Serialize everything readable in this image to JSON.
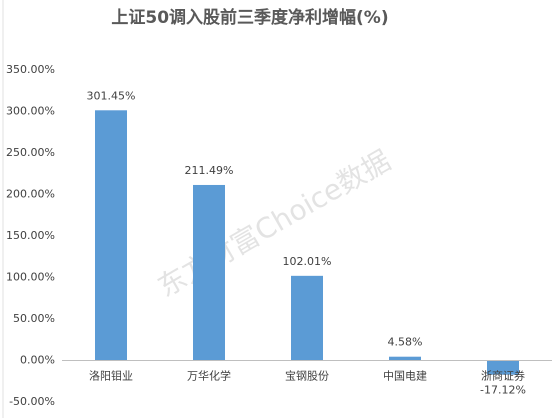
{
  "chart_data": {
    "type": "bar",
    "title": "上证50调入股前三季度净利增幅(%)",
    "watermark": "东方财富Choice数据",
    "categories": [
      "洛阳钼业",
      "万华化学",
      "宝钢股份",
      "中国电建",
      "浙商证券"
    ],
    "values": [
      301.45,
      211.49,
      102.01,
      4.58,
      -17.12
    ],
    "value_labels": [
      "301.45%",
      "211.49%",
      "102.01%",
      "4.58%",
      "-17.12%"
    ],
    "color": "#5b9bd5",
    "ylim": [
      -50,
      350
    ],
    "yticks": [
      {
        "value": -50,
        "label": "-50.00%"
      },
      {
        "value": 0,
        "label": "0.00%"
      },
      {
        "value": 50,
        "label": "50.00%"
      },
      {
        "value": 100,
        "label": "100.00%"
      },
      {
        "value": 150,
        "label": "150.00%"
      },
      {
        "value": 200,
        "label": "200.00%"
      },
      {
        "value": 250,
        "label": "250.00%"
      },
      {
        "value": 300,
        "label": "300.00%"
      },
      {
        "value": 350,
        "label": "350.00%"
      }
    ],
    "grid": false
  }
}
